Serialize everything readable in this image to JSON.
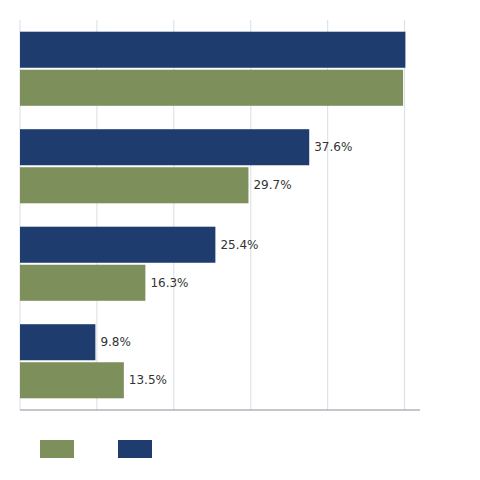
{
  "chart_data": {
    "type": "bar",
    "orientation": "horizontal",
    "categories": [
      null,
      null,
      null,
      null
    ],
    "series": [
      {
        "color": "#1e3d6e",
        "values": [
          50.1,
          37.6,
          25.4,
          9.8
        ],
        "value_labels": [
          null,
          "37.6%",
          "25.4%",
          "9.8%"
        ]
      },
      {
        "color": "#7d8f5a",
        "values": [
          49.8,
          29.7,
          16.3,
          13.5
        ],
        "value_labels": [
          null,
          "29.7%",
          "16.3%",
          "13.5%"
        ]
      }
    ],
    "xlim": [
      0,
      52
    ],
    "xticks": [
      0,
      10,
      20,
      30,
      40,
      50
    ],
    "grid": true,
    "tick_labels": false,
    "data_labels": true,
    "legend": "bottom"
  }
}
